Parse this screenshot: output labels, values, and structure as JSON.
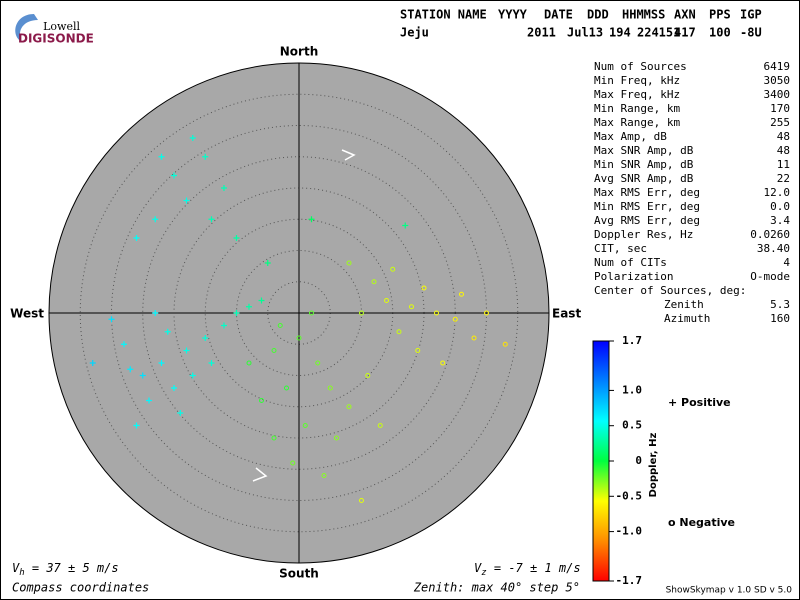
{
  "logo": {
    "line1": "Lowell",
    "line2": "DIGISONDE"
  },
  "header": {
    "row1": [
      "STATION NAME",
      "YYYY",
      "DATE",
      "DDD",
      "HHMMSS",
      "AXN",
      "PPS",
      "IGP"
    ],
    "row2": [
      "Jeju",
      "2011",
      "Jul13",
      "194",
      "224151",
      "417",
      "100",
      "-8U"
    ]
  },
  "compass": {
    "north": "North",
    "south": "South",
    "east": "East",
    "west": "West",
    "zenith_max": 40,
    "zenith_step": 5
  },
  "stats": [
    [
      "Num of Sources",
      "6419"
    ],
    [
      "Min Freq, kHz",
      "3050"
    ],
    [
      "Max Freq, kHz",
      "3400"
    ],
    [
      "Min Range, km",
      "170"
    ],
    [
      "Max Range, km",
      "255"
    ],
    [
      "Max Amp, dB",
      "48"
    ],
    [
      "Max SNR Amp, dB",
      "48"
    ],
    [
      "Min SNR Amp, dB",
      "11"
    ],
    [
      "Avg SNR Amp, dB",
      "22"
    ],
    [
      "Max RMS Err, deg",
      "12.0"
    ],
    [
      "Min RMS Err, deg",
      "0.0"
    ],
    [
      "Avg RMS Err, deg",
      "3.4"
    ],
    [
      "Doppler Res, Hz",
      "0.0260"
    ],
    [
      "CIT, sec",
      "38.40"
    ],
    [
      "Num of CITs",
      "4"
    ],
    [
      "Polarization",
      "O-mode"
    ]
  ],
  "center": {
    "title": "Center of Sources, deg:",
    "zenith_label": "Zenith",
    "zenith": "5.3",
    "azimuth_label": "Azimuth",
    "azimuth": "160"
  },
  "colorbar": {
    "title": "Doppler, Hz",
    "lim": [
      -1.7,
      1.7
    ],
    "ticks": [
      {
        "value": 1.7,
        "label": "1.7"
      },
      {
        "value": 1,
        "label": "1.0"
      },
      0.5,
      0,
      -0.5,
      {
        "value": -1,
        "label": "-1.0"
      },
      {
        "value": -1.7,
        "label": "-1.7"
      }
    ],
    "colors": [
      "#ff0000",
      "#ff8c00",
      "#ffff00",
      "#00ff40",
      "#00ffff",
      "#0080ff",
      "#0000ff"
    ]
  },
  "legend": {
    "positive": "+ Positive",
    "negative": "o Negative",
    "positive_color": "#0000cc",
    "negative_color": "#dd0000"
  },
  "footer": {
    "vh": {
      "symbol": "V",
      "sub": "h",
      "text": " = 37 ± 5 m/s"
    },
    "vz": {
      "symbol": "V",
      "sub": "z",
      "text": " = -7 ± 1 m/s"
    },
    "coords": "Compass coordinates",
    "zenith": "Zenith: max 40°  step 5°",
    "version": "ShowSkymap v 1.0   SD v 5.0"
  },
  "points": [
    [
      -22,
      -8,
      0.6
    ],
    [
      -25,
      -10,
      0.7
    ],
    [
      -18,
      -6,
      0.5
    ],
    [
      -28,
      -5,
      0.6
    ],
    [
      -20,
      -12,
      0.55
    ],
    [
      -15,
      -4,
      0.45
    ],
    [
      -30,
      -1,
      0.7
    ],
    [
      -12,
      -2,
      0.4
    ],
    [
      -24,
      -14,
      0.6
    ],
    [
      -17,
      -10,
      0.5
    ],
    [
      -10,
      0,
      0.35
    ],
    [
      -27,
      -9,
      0.65
    ],
    [
      -21,
      -3,
      0.5
    ],
    [
      -33,
      -8,
      0.75
    ],
    [
      -14,
      -8,
      0.45
    ],
    [
      -8,
      1,
      0.3
    ],
    [
      -19,
      -16,
      0.5
    ],
    [
      -26,
      -18,
      0.55
    ],
    [
      -6,
      2,
      0.25
    ],
    [
      -23,
      0,
      0.6
    ],
    [
      -18,
      18,
      0.5
    ],
    [
      -20,
      22,
      0.45
    ],
    [
      -15,
      25,
      0.4
    ],
    [
      -23,
      15,
      0.5
    ],
    [
      -12,
      20,
      0.35
    ],
    [
      -17,
      28,
      0.45
    ],
    [
      -26,
      12,
      0.55
    ],
    [
      -10,
      12,
      0.3
    ],
    [
      -5,
      8,
      0.2
    ],
    [
      -14,
      15,
      0.35
    ],
    [
      -22,
      25,
      0.5
    ],
    [
      2,
      15,
      0.1
    ],
    [
      17,
      14,
      0.2
    ],
    [
      -8,
      -8,
      -0.1
    ],
    [
      -4,
      -6,
      -0.15
    ],
    [
      0,
      -4,
      -0.2
    ],
    [
      -2,
      -12,
      -0.1
    ],
    [
      3,
      -8,
      -0.25
    ],
    [
      -6,
      -14,
      -0.1
    ],
    [
      1,
      -18,
      -0.2
    ],
    [
      5,
      -12,
      -0.3
    ],
    [
      -3,
      -2,
      -0.15
    ],
    [
      2,
      0,
      -0.2
    ],
    [
      6,
      -20,
      -0.3
    ],
    [
      -1,
      -24,
      -0.25
    ],
    [
      8,
      -15,
      -0.35
    ],
    [
      4,
      -26,
      -0.3
    ],
    [
      -4,
      -20,
      -0.15
    ],
    [
      10,
      0,
      -0.4
    ],
    [
      14,
      2,
      -0.5
    ],
    [
      18,
      1,
      -0.5
    ],
    [
      22,
      0,
      -0.55
    ],
    [
      16,
      -3,
      -0.45
    ],
    [
      20,
      4,
      -0.55
    ],
    [
      25,
      -1,
      -0.6
    ],
    [
      12,
      5,
      -0.4
    ],
    [
      26,
      3,
      -0.6
    ],
    [
      19,
      -6,
      -0.5
    ],
    [
      28,
      -4,
      -0.65
    ],
    [
      30,
      0,
      -0.6
    ],
    [
      15,
      7,
      -0.45
    ],
    [
      23,
      -8,
      -0.55
    ],
    [
      11,
      -10,
      -0.45
    ],
    [
      33,
      -5,
      -0.7
    ],
    [
      8,
      8,
      -0.35
    ],
    [
      13,
      -18,
      -0.45
    ],
    [
      10,
      -30,
      -0.5
    ]
  ]
}
